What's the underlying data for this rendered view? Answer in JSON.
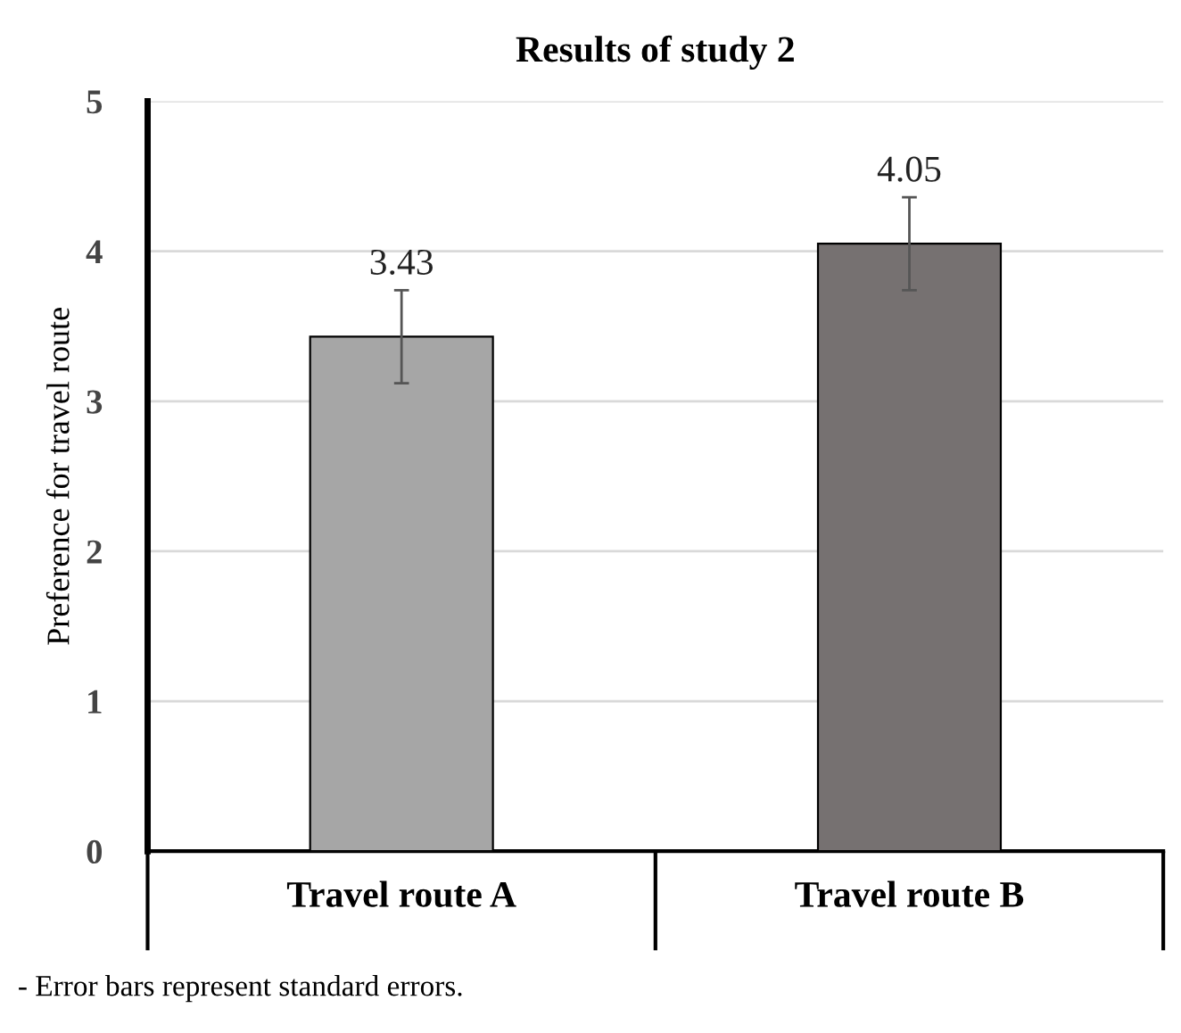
{
  "chart_data": {
    "type": "bar",
    "title": "Results of study 2",
    "ylabel": "Preference for travel route",
    "categories": [
      "Travel route A",
      "Travel route B"
    ],
    "values": [
      3.43,
      4.05
    ],
    "colors": [
      "#a6a6a6",
      "#767171"
    ],
    "errors": [
      0.31,
      0.31
    ],
    "ylim": [
      0,
      5
    ],
    "yticks": [
      0,
      1,
      2,
      3,
      4,
      5
    ],
    "grid": "y",
    "data_labels": true,
    "annotations": [
      "- Error bars represent standard errors."
    ]
  }
}
